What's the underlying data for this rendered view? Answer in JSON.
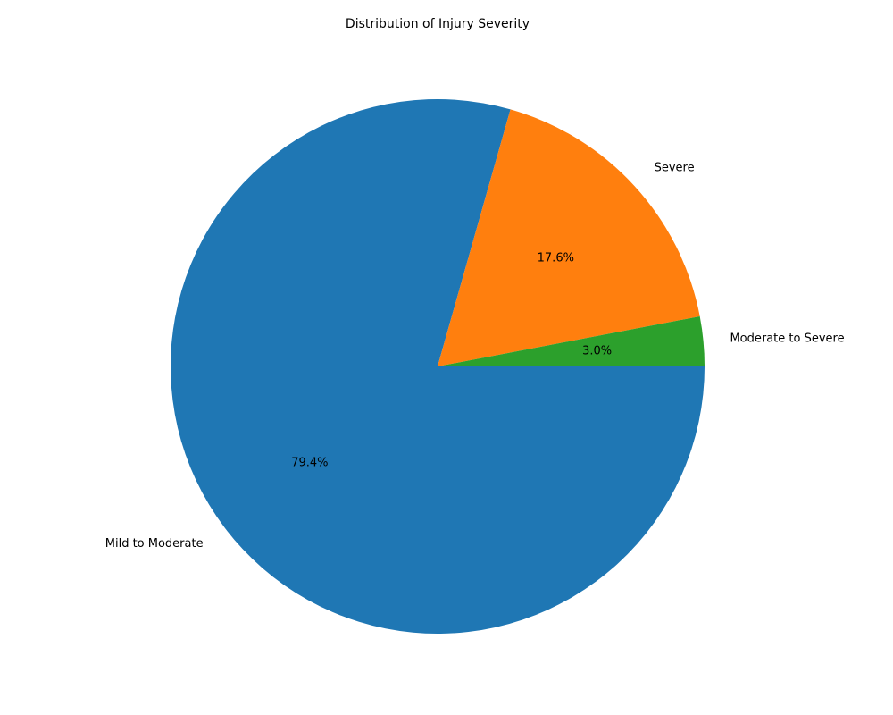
{
  "chart_data": {
    "type": "pie",
    "title": "Distribution of Injury Severity",
    "categories": [
      "Mild to Moderate",
      "Severe",
      "Moderate to Severe"
    ],
    "values": [
      79.4,
      17.6,
      3.0
    ],
    "percent_labels": [
      "79.4%",
      "17.6%",
      "3.0%"
    ],
    "colors": [
      "#1f77b4",
      "#ff7f0e",
      "#2ca02c"
    ],
    "start_angle": "3 o'clock",
    "direction": "clockwise",
    "legend": "none"
  }
}
